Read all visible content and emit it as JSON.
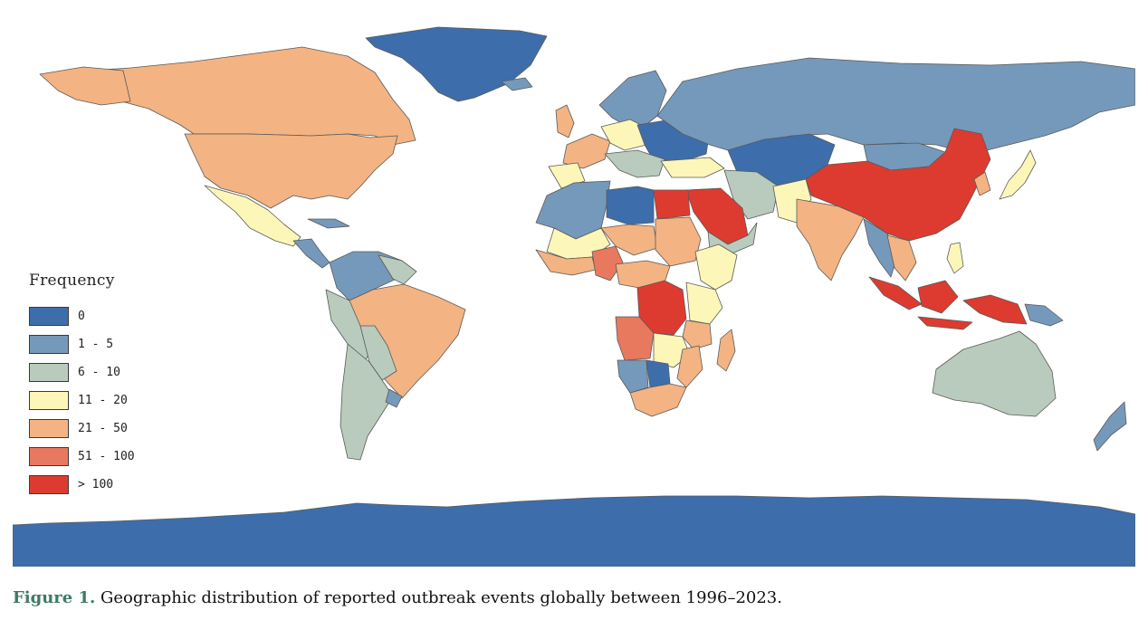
{
  "legend": {
    "title": "Frequency",
    "items": [
      {
        "label": "0",
        "color": "#3d6eab"
      },
      {
        "label": "1 - 5",
        "color": "#7599bb"
      },
      {
        "label": "6 - 10",
        "color": "#b9cbbc"
      },
      {
        "label": "11 - 20",
        "color": "#fdf6b9"
      },
      {
        "label": "21 - 50",
        "color": "#f3b382"
      },
      {
        "label": "51 - 100",
        "color": "#e8785e"
      },
      {
        "label": "> 100",
        "color": "#dd3b2f"
      }
    ]
  },
  "caption": {
    "label": "Figure 1.",
    "text": " Geographic distribution of reported outbreak events globally between 1996–2023."
  }
}
